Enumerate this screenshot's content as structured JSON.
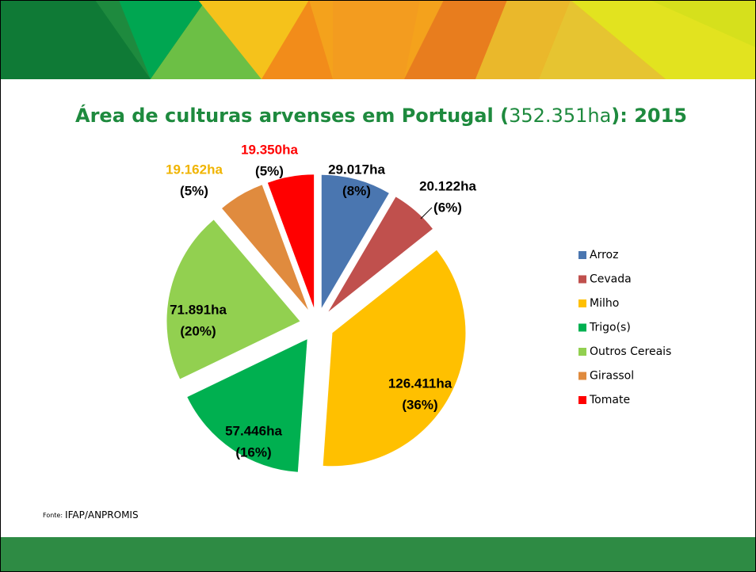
{
  "chart_data": {
    "type": "pie",
    "title_parts": [
      "Área de culturas arvenses em Portugal (",
      "352.351ha",
      "): 2015"
    ],
    "categories": [
      "Arroz",
      "Cevada",
      "Milho",
      "Trigo(s)",
      "Outros Cereais",
      "Girassol",
      "Tomate"
    ],
    "values": [
      29017,
      20122,
      126411,
      57446,
      71891,
      19162,
      19350
    ],
    "value_labels": [
      "29.017ha",
      "20.122ha",
      "126.411ha",
      "57.446ha",
      "71.891ha",
      "19.162ha",
      "19.350ha"
    ],
    "percent_labels": [
      "(8%)",
      "(6%)",
      "(36%)",
      "(16%)",
      "(20%)",
      "(5%)",
      "(5%)"
    ],
    "colors": [
      "#4a76b0",
      "#c0504d",
      "#ffc000",
      "#00b050",
      "#92d050",
      "#e08b3e",
      "#ff0000"
    ],
    "label_colors": [
      "#000000",
      "#000000",
      "#000000",
      "#000000",
      "#000000",
      "#f0b400",
      "#ff0000"
    ],
    "legend": "right",
    "source_prefix": "Fonte:",
    "source": "IFAP/ANPROMIS"
  }
}
